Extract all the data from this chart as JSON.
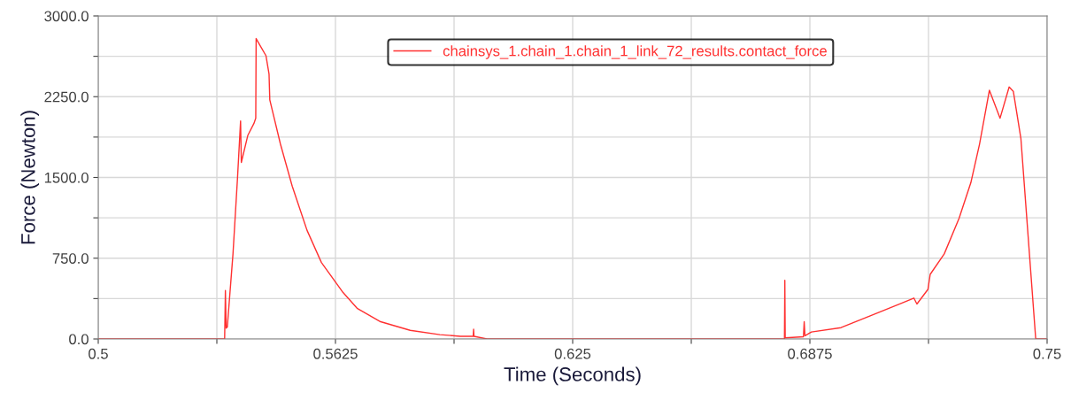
{
  "chart_data": {
    "type": "line",
    "xlabel": "Time (Seconds)",
    "ylabel": "Force (Newton)",
    "xlim": [
      0.5,
      0.75
    ],
    "ylim": [
      0,
      3000
    ],
    "xticks": [
      0.5,
      {
        "value": 0.53125,
        "label": null
      },
      0.5625,
      {
        "value": 0.59375,
        "label": null
      },
      0.625,
      {
        "value": 0.65625,
        "label": null
      },
      0.6875,
      {
        "value": 0.71875,
        "label": null
      },
      0.75
    ],
    "yticks": [
      {
        "value": 0,
        "label": "0.0"
      },
      {
        "value": 375,
        "label": null
      },
      {
        "value": 750,
        "label": "750.0"
      },
      {
        "value": 1125,
        "label": null
      },
      {
        "value": 1500,
        "label": "1500.0"
      },
      {
        "value": 1875,
        "label": null
      },
      {
        "value": 2250,
        "label": "2250.0"
      },
      {
        "value": 2625,
        "label": null
      },
      {
        "value": 3000,
        "label": "3000.0"
      }
    ],
    "grid": true,
    "legend": "top",
    "marker": "none",
    "line_style": "solid",
    "series": [
      {
        "name": "chainsys_1.chain_1.chain_1_link_72_results.contact_force",
        "color": "#ff3030",
        "x": [
          0.5,
          0.5333,
          0.5335,
          0.5337,
          0.534,
          0.5355,
          0.5367,
          0.5375,
          0.5377,
          0.5394,
          0.541,
          0.5415,
          0.5416,
          0.5429,
          0.5442,
          0.545,
          0.5452,
          0.548,
          0.5511,
          0.555,
          0.5588,
          0.5643,
          0.5682,
          0.5744,
          0.5822,
          0.59,
          0.5954,
          0.5988,
          0.5989,
          0.599,
          0.6024,
          0.6774,
          0.6808,
          0.6809,
          0.681,
          0.6858,
          0.686,
          0.6862,
          0.6879,
          0.6957,
          0.7034,
          0.7112,
          0.7149,
          0.7157,
          0.7186,
          0.7192,
          0.7229,
          0.7268,
          0.7299,
          0.7322,
          0.7348,
          0.7376,
          0.74,
          0.7411,
          0.7431,
          0.747,
          0.75
        ],
        "values": [
          0,
          0,
          450,
          100,
          110,
          790,
          1500,
          2025,
          1640,
          1890,
          2000,
          2050,
          2790,
          2710,
          2630,
          2460,
          2220,
          1810,
          1420,
          1010,
          710,
          440,
          285,
          160,
          80,
          40,
          25,
          25,
          90,
          25,
          0,
          0,
          0,
          545,
          10,
          20,
          160,
          30,
          65,
          105,
          215,
          325,
          380,
          325,
          460,
          600,
          790,
          1120,
          1450,
          1810,
          2310,
          2050,
          2340,
          2300,
          1860,
          0,
          0
        ]
      }
    ]
  }
}
